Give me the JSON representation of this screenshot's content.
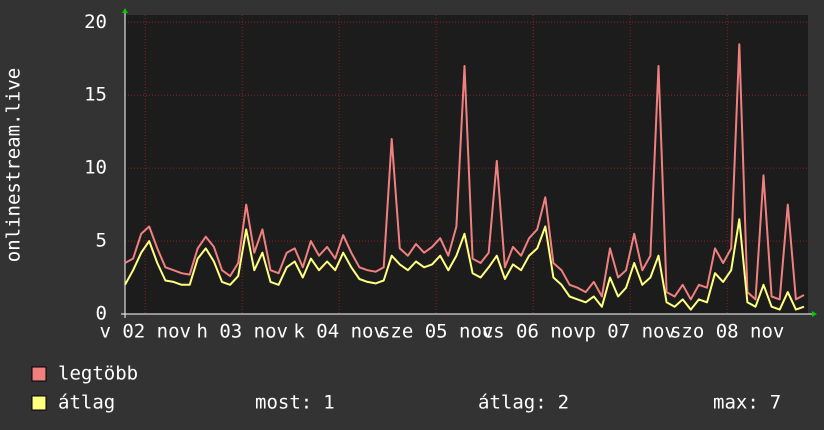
{
  "chart_data": {
    "type": "line",
    "ylabel": "onlinestream.live",
    "x": [
      0,
      2,
      4,
      6,
      8,
      10,
      12,
      14,
      16,
      18,
      20,
      22,
      24,
      26,
      28,
      30,
      32,
      34,
      36,
      38,
      40,
      42,
      44,
      46,
      48,
      50,
      52,
      54,
      56,
      58,
      60,
      62,
      64,
      66,
      68,
      70,
      72,
      74,
      76,
      78,
      80,
      82,
      84,
      86,
      88,
      90,
      92,
      94,
      96,
      98,
      100,
      102,
      104,
      106,
      108,
      110,
      112,
      114,
      116,
      118,
      120,
      122,
      124,
      126,
      128,
      130,
      132,
      134,
      136,
      138,
      140,
      142,
      144,
      146,
      148,
      150,
      152,
      154,
      156,
      158,
      160,
      162,
      164,
      166,
      168
    ],
    "xlim": [
      0,
      169
    ],
    "xticks": [
      {
        "value": 5,
        "label": "v 02 nov"
      },
      {
        "value": 29,
        "label": "h 03 nov"
      },
      {
        "value": 53,
        "label": "k 04 nov"
      },
      {
        "value": 77,
        "label": "sze 05 nov"
      },
      {
        "value": 101,
        "label": "cs 06 nov"
      },
      {
        "value": 125,
        "label": "p 07 nov"
      },
      {
        "value": 149,
        "label": "szo 08 nov"
      }
    ],
    "ylim": [
      0,
      20.5
    ],
    "yticks": [
      0,
      5,
      10,
      15,
      20
    ],
    "grid": true,
    "series": [
      {
        "name": "legtöbb",
        "color": "#f08080",
        "values": [
          3.5,
          3.8,
          5.5,
          6.0,
          4.5,
          3.2,
          3.0,
          2.8,
          2.7,
          4.5,
          5.3,
          4.6,
          3.0,
          2.6,
          3.5,
          7.5,
          4.2,
          5.8,
          3.0,
          2.8,
          4.2,
          4.5,
          3.2,
          5.0,
          4.0,
          4.6,
          3.8,
          5.4,
          4.2,
          3.2,
          3.0,
          2.9,
          3.2,
          12.0,
          4.5,
          4.0,
          4.8,
          4.2,
          4.6,
          5.2,
          4.0,
          6.0,
          17.0,
          3.8,
          3.5,
          4.2,
          10.5,
          3.2,
          4.6,
          4.0,
          5.2,
          5.8,
          8.0,
          3.5,
          3.0,
          2.0,
          1.8,
          1.5,
          2.2,
          1.2,
          4.5,
          2.5,
          3.0,
          5.5,
          3.0,
          4.0,
          17.0,
          1.5,
          1.2,
          2.0,
          1.0,
          2.0,
          1.8,
          4.5,
          3.5,
          4.5,
          18.5,
          1.5,
          1.0,
          9.5,
          1.2,
          1.0,
          7.5,
          1.0,
          1.3
        ]
      },
      {
        "name": "átlag",
        "color": "#ffff80",
        "values": [
          2.0,
          3.0,
          4.2,
          5.0,
          3.5,
          2.3,
          2.2,
          2.0,
          2.0,
          3.8,
          4.5,
          3.6,
          2.2,
          2.0,
          2.6,
          5.8,
          3.0,
          4.2,
          2.2,
          2.0,
          3.2,
          3.6,
          2.5,
          3.8,
          3.0,
          3.6,
          3.0,
          4.2,
          3.2,
          2.4,
          2.2,
          2.1,
          2.3,
          4.0,
          3.4,
          3.0,
          3.6,
          3.2,
          3.4,
          4.0,
          3.0,
          4.0,
          5.5,
          2.8,
          2.5,
          3.2,
          4.0,
          2.4,
          3.4,
          3.0,
          4.0,
          4.5,
          6.0,
          2.5,
          2.0,
          1.2,
          1.0,
          0.8,
          1.2,
          0.5,
          2.5,
          1.2,
          1.8,
          3.5,
          2.0,
          2.5,
          4.0,
          0.8,
          0.5,
          1.0,
          0.3,
          1.0,
          0.8,
          2.8,
          2.2,
          3.0,
          6.5,
          0.8,
          0.5,
          2.0,
          0.5,
          0.3,
          1.5,
          0.3,
          0.5
        ]
      }
    ],
    "stats": [
      {
        "label": "most:",
        "value": 1
      },
      {
        "label": "átlag:",
        "value": 2
      },
      {
        "label": "max:",
        "value": 7
      }
    ]
  }
}
